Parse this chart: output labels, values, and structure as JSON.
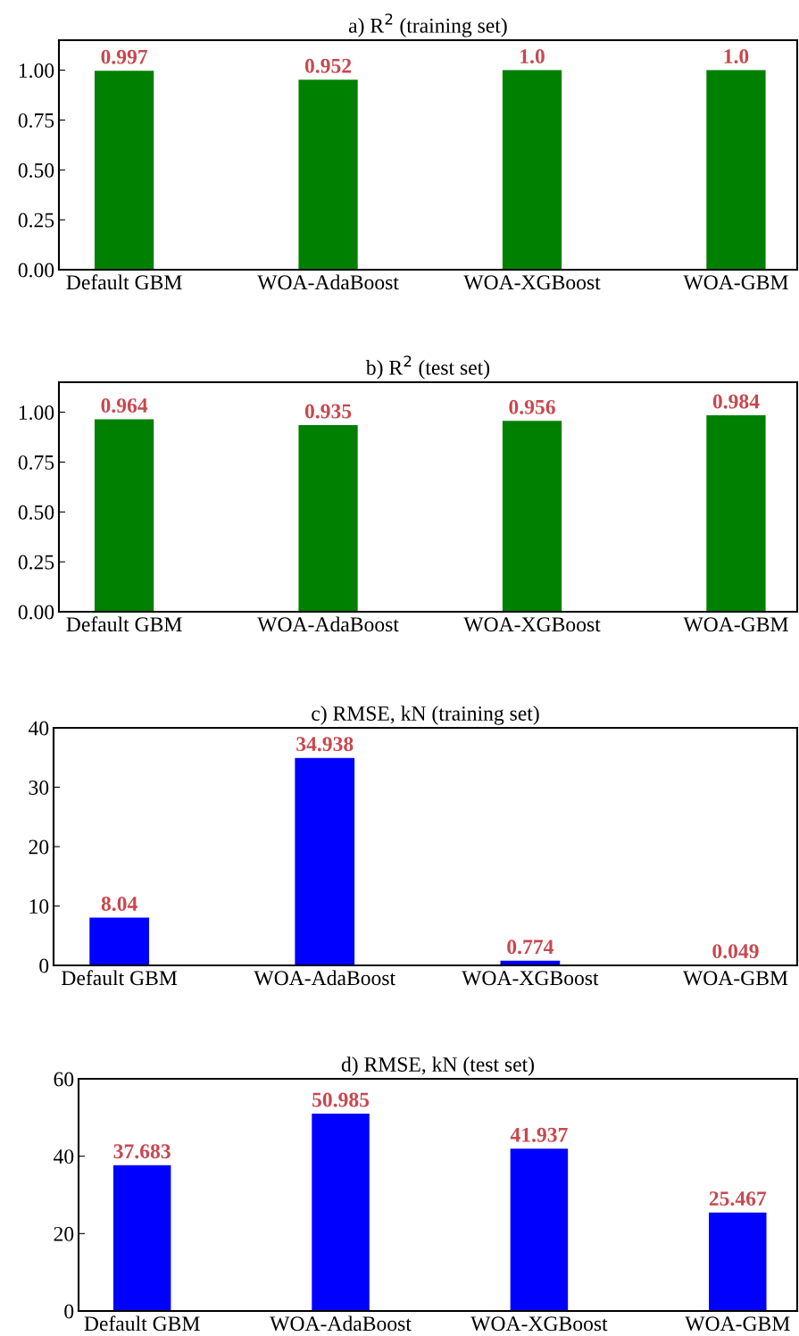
{
  "chart_data": [
    {
      "type": "bar",
      "title": "a) R$^{2}$ (training set)",
      "categories": [
        "Default GBM",
        "WOA-AdaBoost",
        "WOA-XGBoost",
        "WOA-GBM"
      ],
      "values": [
        0.997,
        0.952,
        1.0,
        1.0
      ],
      "value_labels": [
        "0.997",
        "0.952",
        "1.0",
        "1.0"
      ],
      "color": "#008000",
      "ylim": [
        0,
        1.15
      ],
      "yticks": [
        "0.00",
        "0.25",
        "0.50",
        "0.75",
        "1.00"
      ],
      "grid": false
    },
    {
      "type": "bar",
      "title": "b) R$^{2}$ (test set)",
      "categories": [
        "Default GBM",
        "WOA-AdaBoost",
        "WOA-XGBoost",
        "WOA-GBM"
      ],
      "values": [
        0.964,
        0.935,
        0.956,
        0.984
      ],
      "color": "#008000",
      "ylim": [
        0,
        1.15
      ],
      "yticks": [
        "0.00",
        "0.25",
        "0.50",
        "0.75",
        "1.00"
      ],
      "data_labels": true,
      "grid": false
    },
    {
      "type": "bar",
      "title": "c) RMSE, kN (training set)",
      "categories": [
        "Default GBM",
        "WOA-AdaBoost",
        "WOA-XGBoost",
        "WOA-GBM"
      ],
      "values": [
        8.04,
        34.938,
        0.774,
        0.049
      ],
      "color": "#0000ff",
      "ylim": [
        0,
        40
      ],
      "yticks": [
        0,
        10,
        20,
        30,
        40
      ],
      "data_labels": true,
      "grid": false
    },
    {
      "type": "bar",
      "title": "d) RMSE, kN (test set)",
      "categories": [
        "Default GBM",
        "WOA-AdaBoost",
        "WOA-XGBoost",
        "WOA-GBM"
      ],
      "values": [
        37.683,
        50.985,
        41.937,
        25.467
      ],
      "color": "#0000ff",
      "ylim": [
        0,
        60
      ],
      "yticks": [
        0,
        20,
        40,
        60
      ],
      "data_labels": true,
      "grid": false
    }
  ]
}
